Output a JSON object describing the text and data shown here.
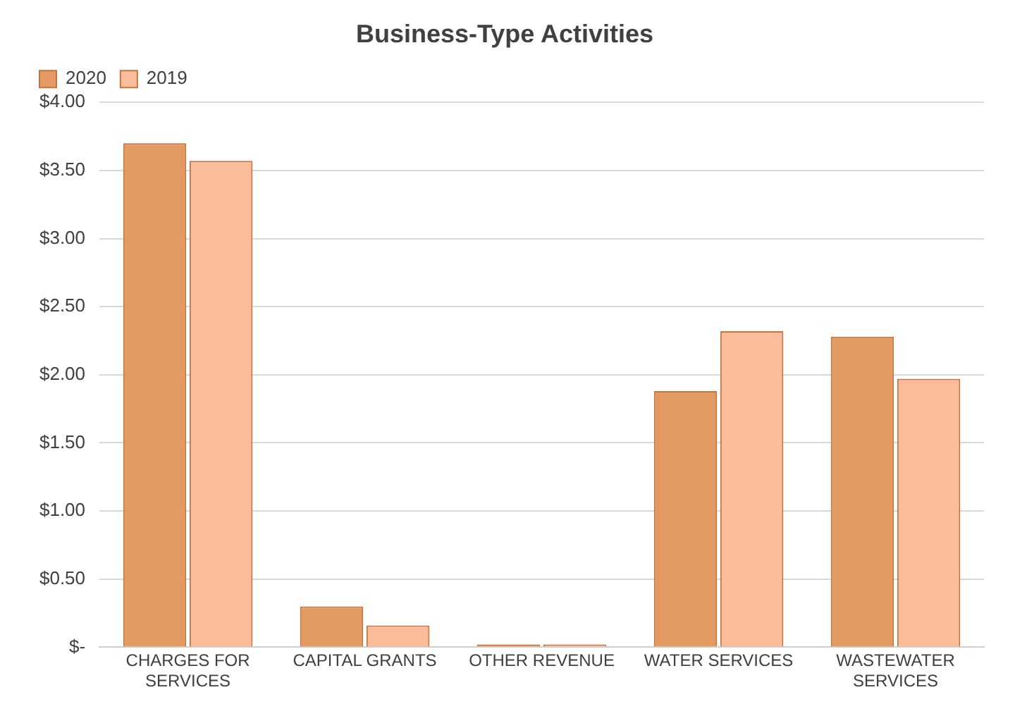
{
  "chart_data": {
    "type": "bar",
    "title": "Business-Type Activities",
    "categories": [
      "CHARGES FOR SERVICES",
      "CAPITAL GRANTS",
      "OTHER REVENUE",
      "WATER SERVICES",
      "WASTEWATER SERVICES"
    ],
    "series": [
      {
        "name": "2020",
        "color": "#e39a63",
        "values": [
          3.7,
          0.3,
          0.02,
          1.88,
          2.28
        ]
      },
      {
        "name": "2019",
        "color": "#fbbc9c",
        "values": [
          3.57,
          0.16,
          0.02,
          2.32,
          1.97
        ]
      }
    ],
    "ylim": [
      0,
      4
    ],
    "yticks": [
      {
        "value": 0,
        "label": "$-"
      },
      {
        "value": 0.5,
        "label": "$0.50"
      },
      {
        "value": 1,
        "label": "$1.00"
      },
      {
        "value": 1.5,
        "label": "$1.50"
      },
      {
        "value": 2,
        "label": "$2.00"
      },
      {
        "value": 2.5,
        "label": "$2.50"
      },
      {
        "value": 3,
        "label": "$3.00"
      },
      {
        "value": 3.5,
        "label": "$3.50"
      },
      {
        "value": 4,
        "label": "$4.00"
      }
    ],
    "grid": "y",
    "legend": "top left"
  }
}
